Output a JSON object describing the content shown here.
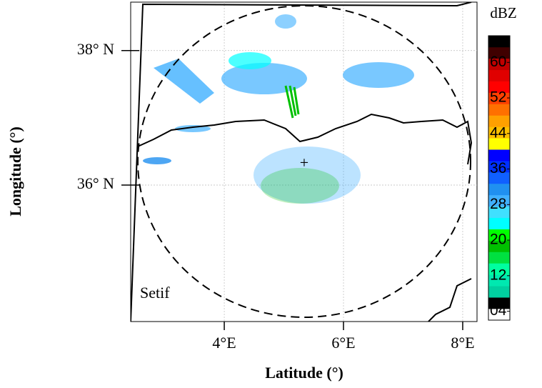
{
  "map": {
    "station": "Setif",
    "x_label": "Latitude (°)",
    "y_label": "Longitude (°)",
    "xlim": [
      2.43,
      8.24
    ],
    "ylim": [
      33.97,
      38.72
    ],
    "xticks": [
      {
        "value": 4,
        "label": "4°E"
      },
      {
        "value": 6,
        "label": "6°E"
      },
      {
        "value": 8,
        "label": "8°E"
      }
    ],
    "yticks": [
      {
        "value": 36,
        "label": "36° N"
      },
      {
        "value": 38,
        "label": "38° N"
      }
    ],
    "colorbar": {
      "title": "dBZ",
      "clim": [
        2,
        66
      ],
      "ticks": [
        {
          "value": 4,
          "label": "04"
        },
        12,
        20,
        28,
        36,
        44,
        52,
        60
      ],
      "colors": [
        "#ffffff",
        "#000000",
        "#00d0a0",
        "#00e8b0",
        "#00ffa0",
        "#00e040",
        "#00c000",
        "#00ff00",
        "#00ffff",
        "#40e0ff",
        "#40b0ff",
        "#2090f0",
        "#1060ff",
        "#0030ff",
        "#0000ff",
        "#ffff00",
        "#ffc000",
        "#ffa000",
        "#ff7000",
        "#ff4000",
        "#ff0000",
        "#e00000",
        "#c00000",
        "#400000",
        "#000000"
      ]
    }
  }
}
